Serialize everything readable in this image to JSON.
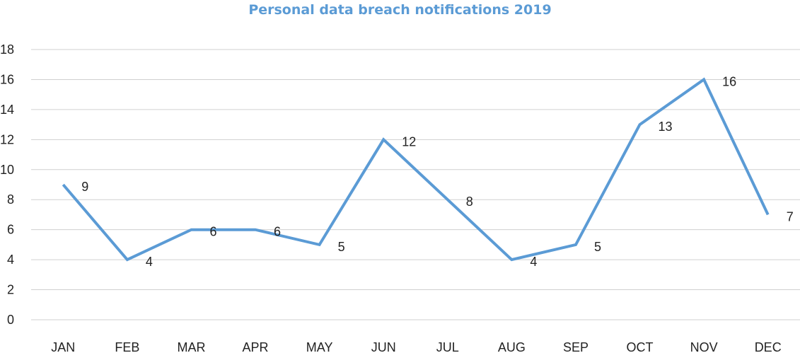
{
  "chart_data": {
    "type": "line",
    "title": "Personal data breach notifications 2019",
    "xlabel": "",
    "ylabel": "",
    "categories": [
      "JAN",
      "FEB",
      "MAR",
      "APR",
      "MAY",
      "JUN",
      "JUL",
      "AUG",
      "SEP",
      "OCT",
      "NOV",
      "DEC"
    ],
    "series": [
      {
        "values": [
          9,
          4,
          6,
          6,
          5,
          12,
          8,
          4,
          5,
          13,
          16,
          7
        ]
      }
    ],
    "ylim": [
      0,
      18
    ],
    "yticks": [
      "0",
      "2",
      "4",
      "6",
      "8",
      "10",
      "12",
      "14",
      "16",
      "18"
    ],
    "grid": true,
    "legend": "none",
    "colors": {
      "title": "#5b9bd5",
      "line": "#5b9bd5",
      "grid": "#d0d0d0"
    }
  }
}
